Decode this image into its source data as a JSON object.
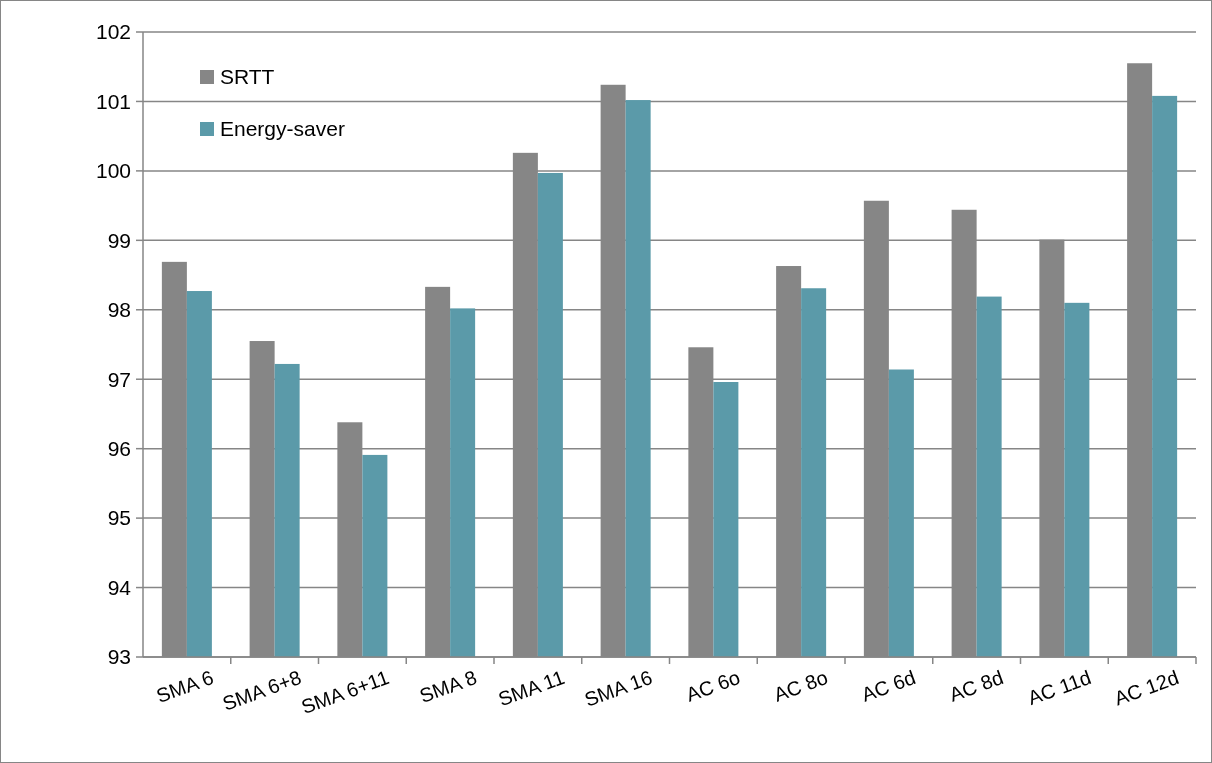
{
  "chart_data": {
    "type": "bar",
    "categories": [
      "SMA 6",
      "SMA 6+8",
      "SMA 6+11",
      "SMA 8",
      "SMA 11",
      "SMA 16",
      "AC 6o",
      "AC 8o",
      "AC 6d",
      "AC 8d",
      "AC 11d",
      "AC 12d"
    ],
    "series": [
      {
        "name": "SRTT",
        "color": "#868686",
        "values": [
          98.69,
          97.55,
          96.38,
          98.33,
          100.26,
          101.24,
          97.46,
          98.63,
          99.57,
          99.44,
          99.01,
          101.55
        ]
      },
      {
        "name": "Energy-saver",
        "color": "#5b9aa9",
        "values": [
          98.27,
          97.22,
          95.91,
          98.02,
          99.97,
          101.02,
          96.96,
          98.31,
          97.14,
          98.19,
          98.1,
          101.08
        ]
      }
    ],
    "ylim": [
      93,
      102
    ],
    "yticks": [
      93,
      94,
      95,
      96,
      97,
      98,
      99,
      100,
      101,
      102
    ],
    "grid": "y",
    "legend": "top left"
  }
}
